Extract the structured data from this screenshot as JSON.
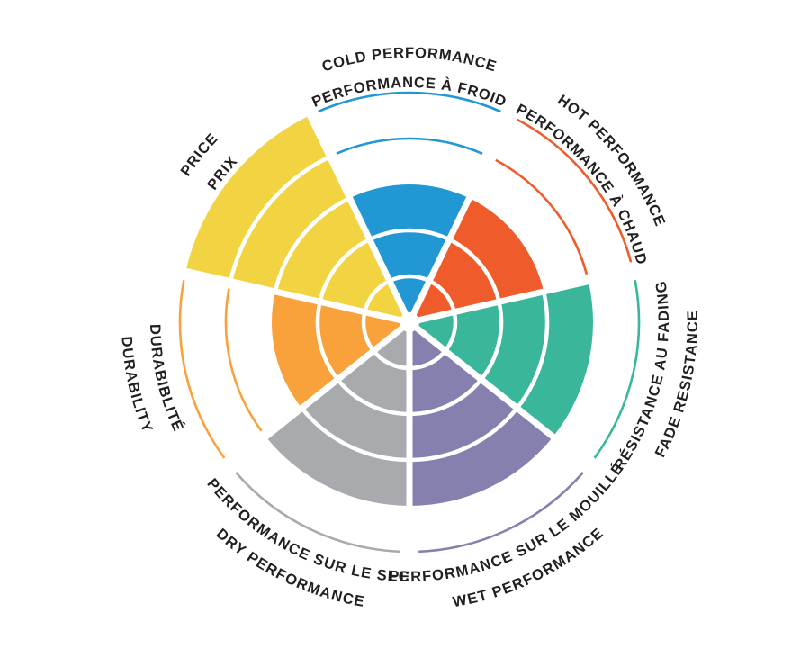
{
  "page": {
    "background": "#ffffff",
    "text_color": "#231F20"
  },
  "chart_data": {
    "type": "bar",
    "layout": "polar-sectors",
    "description": "Radial tire-attribute rating wheel: 7 wedge sectors, each filled to a score out of 5 rings; unfilled rings shown as thin colored arcs; bilingual curved labels around the rim",
    "rings": 5,
    "max_value": 5,
    "grid": "white ring dividers inside filled wedges",
    "legend_position": "none",
    "categories": [
      {
        "id": "cold-performance",
        "label_en": "COLD PERFORMANCE",
        "label_fr": "PERFORMANCE À FROID",
        "value": 3,
        "color": "#2197D3",
        "label_flipped": false
      },
      {
        "id": "hot-performance",
        "label_en": "HOT PERFORMANCE",
        "label_fr": "PERFORMANCE À CHAUD",
        "value": 3,
        "color": "#F05B2B",
        "label_flipped": false
      },
      {
        "id": "fade-resistance",
        "label_en": "FADE RESISTANCE",
        "label_fr": "RÉSISTANCE AU FADING",
        "value": 4,
        "color": "#3AB79A",
        "label_flipped": true
      },
      {
        "id": "wet-performance",
        "label_en": "WET PERFORMANCE",
        "label_fr": "PERFORMANCE SUR LE MOUILLÉ",
        "value": 4,
        "color": "#8680AE",
        "label_flipped": true
      },
      {
        "id": "dry-performance",
        "label_en": "DRY PERFORMANCE",
        "label_fr": "PERFORMANCE SUR LE SEC",
        "value": 4,
        "color": "#A9AAAD",
        "label_flipped": true
      },
      {
        "id": "durability",
        "label_en": "DURABILITY",
        "label_fr": "DURABIBLITÉ",
        "value": 3,
        "color": "#F9A13B",
        "label_flipped": true
      },
      {
        "id": "price",
        "label_en": "PRICE",
        "label_fr": "PRIX",
        "value": 5,
        "color": "#F2D341",
        "label_flipped": false
      }
    ]
  }
}
